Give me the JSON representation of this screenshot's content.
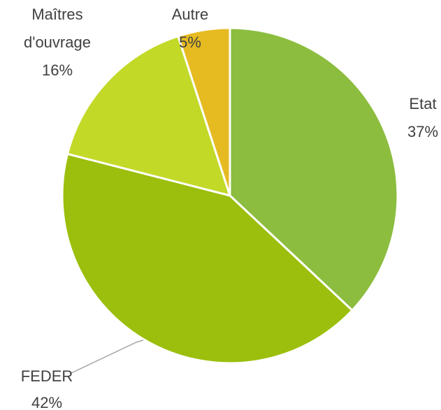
{
  "chart_data": {
    "type": "pie",
    "categories": [
      "Etat",
      "FEDER",
      "Maîtres d'ouvrage",
      "Autre"
    ],
    "values": [
      37,
      42,
      16,
      5
    ],
    "value_labels": [
      "37%",
      "42%",
      "16%",
      "5%"
    ],
    "colors": [
      "#8cbd3f",
      "#9bbf0c",
      "#c2d928",
      "#e6bb22"
    ]
  }
}
